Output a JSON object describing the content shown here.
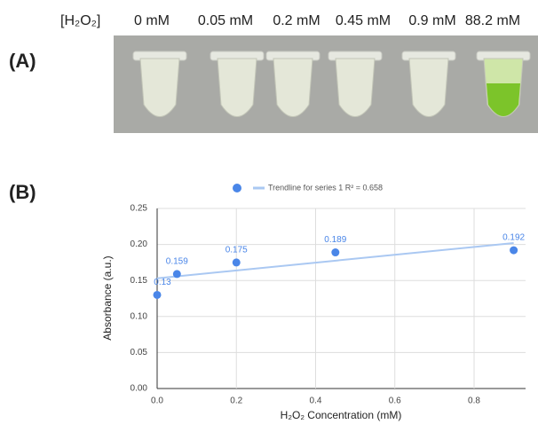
{
  "panel_a": {
    "label": "(A)",
    "header": "[H₂O₂]",
    "concentrations": [
      "0 mM",
      "0.05 mM",
      "0.2 mM",
      "0.45 mM",
      "0.9 mM",
      "88.2 mM"
    ]
  },
  "panel_b": {
    "label": "(B)"
  },
  "chart_data": {
    "type": "scatter",
    "x": [
      0,
      0.05,
      0.2,
      0.45,
      0.9
    ],
    "values": [
      0.13,
      0.159,
      0.175,
      0.189,
      0.192
    ],
    "color": "#4a86e8",
    "trendline": {
      "name": "Trendline for series 1 R² = 0.658",
      "x": [
        0,
        0.9
      ],
      "values": [
        0.153,
        0.202
      ],
      "color": "#aac8f2"
    },
    "xlabel": "H₂O₂ Concentration (mM)",
    "ylabel": "Absorbance (a.u.)",
    "xlim": [
      0,
      0.93
    ],
    "ylim": [
      0,
      0.25
    ],
    "xticks": [
      {
        "value": 0,
        "label": "0.0"
      },
      {
        "value": 0.2,
        "label": "0.2"
      },
      {
        "value": 0.4,
        "label": "0.4"
      },
      {
        "value": 0.6,
        "label": "0.6"
      },
      {
        "value": 0.8,
        "label": "0.8"
      }
    ],
    "yticks": [
      {
        "value": 0,
        "label": "0.00"
      },
      {
        "value": 0.05,
        "label": "0.05"
      },
      {
        "value": 0.1,
        "label": "0.10"
      },
      {
        "value": 0.15,
        "label": "0.15"
      },
      {
        "value": 0.2,
        "label": "0.20"
      },
      {
        "value": 0.25,
        "label": "0.25"
      }
    ],
    "grid": true
  }
}
